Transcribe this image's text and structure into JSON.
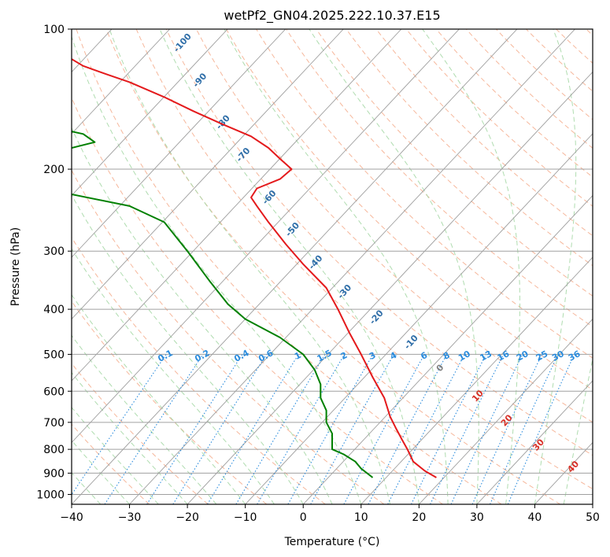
{
  "chart_data": {
    "type": "line",
    "title": "wetPf2_GN04.2025.222.10.37.E15",
    "xlabel": "Temperature (°C)",
    "ylabel": "Pressure (hPa)",
    "xlim": [
      -40,
      50
    ],
    "ylim": [
      1050,
      100
    ],
    "y_scale": "log",
    "grid": true,
    "x_ticks": [
      -40,
      -30,
      -20,
      -10,
      0,
      10,
      20,
      30,
      40,
      50
    ],
    "y_ticks": [
      100,
      200,
      300,
      400,
      500,
      600,
      700,
      800,
      900,
      1000
    ],
    "series": [
      {
        "role": "temperature",
        "color": "#e41a1c",
        "points": [
          [
            23,
            920
          ],
          [
            21,
            890
          ],
          [
            19,
            850
          ],
          [
            18,
            800
          ],
          [
            17,
            760
          ],
          [
            16,
            720
          ],
          [
            15,
            680
          ],
          [
            14,
            620
          ],
          [
            12,
            560
          ],
          [
            10,
            500
          ],
          [
            8,
            450
          ],
          [
            6,
            400
          ],
          [
            4,
            360
          ],
          [
            0,
            320
          ],
          [
            -3,
            290
          ],
          [
            -6,
            260
          ],
          [
            -8,
            240
          ],
          [
            -9,
            230
          ],
          [
            -8,
            220
          ],
          [
            -4,
            210
          ],
          [
            -2,
            200
          ],
          [
            -4,
            190
          ],
          [
            -6,
            180
          ],
          [
            -9,
            170
          ],
          [
            -14,
            160
          ],
          [
            -19,
            150
          ],
          [
            -24,
            140
          ],
          [
            -30,
            130
          ],
          [
            -34,
            125
          ],
          [
            -38,
            120
          ],
          [
            -40,
            116
          ],
          [
            -44,
            110
          ],
          [
            -48,
            105
          ],
          [
            -52,
            100
          ]
        ]
      },
      {
        "role": "dewpoint",
        "color": "#008000",
        "points": [
          [
            12,
            920
          ],
          [
            10,
            880
          ],
          [
            9,
            850
          ],
          [
            7,
            820
          ],
          [
            5,
            800
          ],
          [
            5,
            770
          ],
          [
            5,
            740
          ],
          [
            4,
            700
          ],
          [
            4,
            660
          ],
          [
            3,
            620
          ],
          [
            3,
            580
          ],
          [
            2,
            540
          ],
          [
            0,
            500
          ],
          [
            -4,
            460
          ],
          [
            -10,
            420
          ],
          [
            -13,
            390
          ],
          [
            -16,
            350
          ],
          [
            -20,
            300
          ],
          [
            -24,
            260
          ],
          [
            -30,
            240
          ],
          [
            -45,
            220
          ],
          [
            -72,
            205
          ],
          [
            -78,
            200
          ],
          [
            -70,
            195
          ],
          [
            -52,
            188
          ],
          [
            -40,
            180
          ],
          [
            -36,
            175
          ],
          [
            -38,
            168
          ],
          [
            -46,
            160
          ],
          [
            -48,
            152
          ],
          [
            -44,
            145
          ],
          [
            -46,
            138
          ],
          [
            -56,
            130
          ],
          [
            -63,
            124
          ],
          [
            -60,
            118
          ],
          [
            -52,
            112
          ],
          [
            -52,
            106
          ],
          [
            -50,
            100
          ]
        ]
      }
    ],
    "dry_adiabat_labels": [
      "-100",
      "-90",
      "-80",
      "-70",
      "-60",
      "-50",
      "-40",
      "-30",
      "-20",
      "-10",
      "0",
      "10",
      "20",
      "30",
      "40"
    ],
    "mixing_ratio_labels": [
      "0.1",
      "0.2",
      "0.4",
      "0.6",
      "1",
      "1.5",
      "2",
      "3",
      "4",
      "6",
      "8",
      "10",
      "13",
      "16",
      "20",
      "25",
      "30",
      "36"
    ],
    "colors": {
      "isotherm": "#9e9e9e",
      "isobar": "#a0a0a0",
      "dry_adiabat": "#f4a582",
      "moist_adiabat": "#a6d8a6",
      "mixing_ratio": "#2b8cdd",
      "cold_label": "#2f6ea8",
      "warm_label": "#d73027"
    }
  }
}
